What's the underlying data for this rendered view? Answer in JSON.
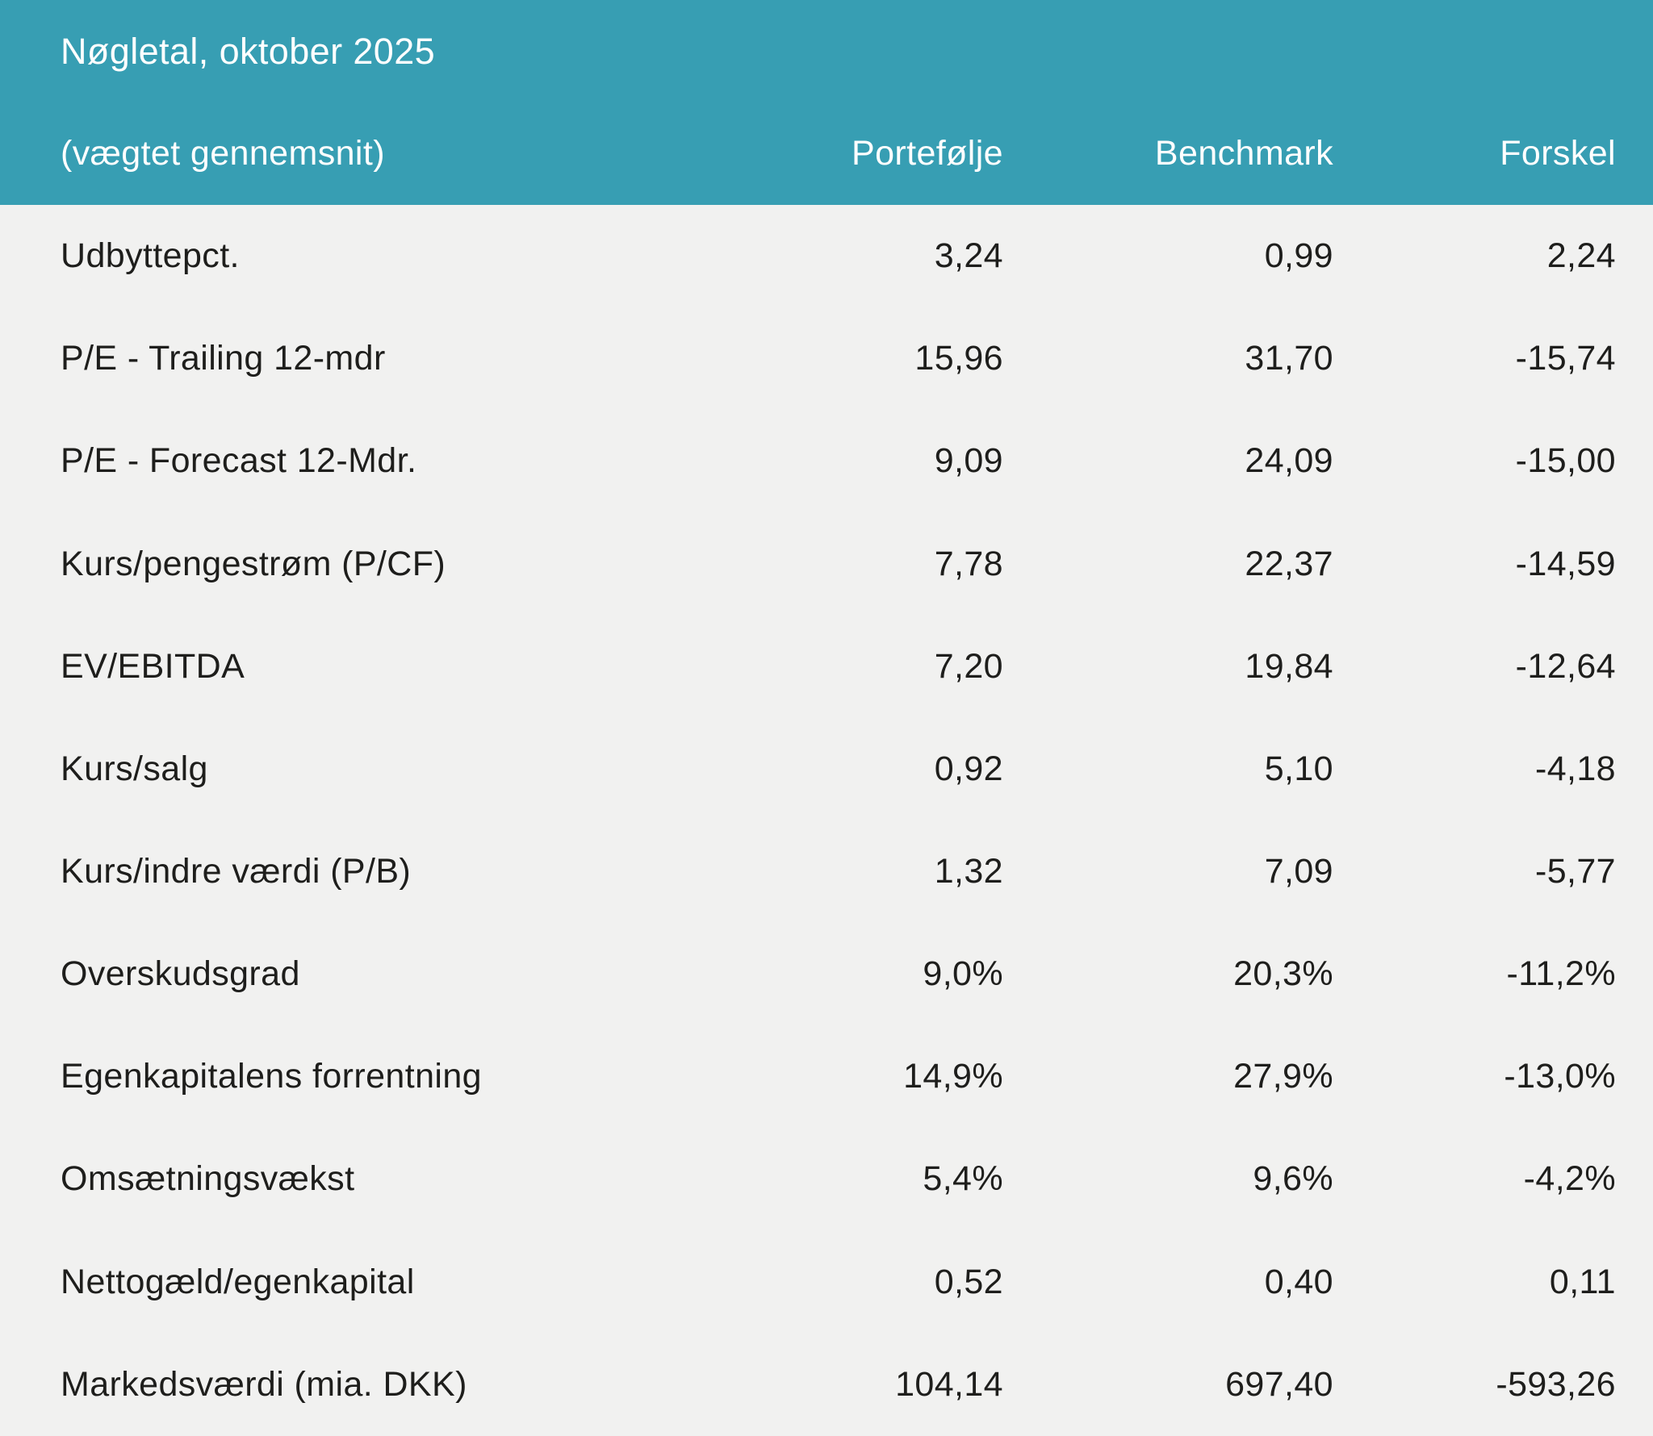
{
  "header": {
    "title": "Nøgletal, oktober 2025",
    "subtitle": "(vægtet gennemsnit)",
    "columns": {
      "portfolio": "Portefølje",
      "benchmark": "Benchmark",
      "difference": "Forskel"
    }
  },
  "colors": {
    "header_bg": "#379EB3",
    "header_text": "#FFFFFF",
    "body_bg": "#F1F1F0",
    "body_text": "#1E1E1C"
  },
  "table": {
    "rows": [
      {
        "label": "Udbyttepct.",
        "portfolio": "3,24",
        "benchmark": "0,99",
        "difference": "2,24"
      },
      {
        "label": "P/E - Trailing 12-mdr",
        "portfolio": "15,96",
        "benchmark": "31,70",
        "difference": "-15,74"
      },
      {
        "label": "P/E - Forecast 12-Mdr.",
        "portfolio": "9,09",
        "benchmark": "24,09",
        "difference": "-15,00"
      },
      {
        "label": "Kurs/pengestrøm (P/CF)",
        "portfolio": "7,78",
        "benchmark": "22,37",
        "difference": "-14,59"
      },
      {
        "label": "EV/EBITDA",
        "portfolio": "7,20",
        "benchmark": "19,84",
        "difference": "-12,64"
      },
      {
        "label": "Kurs/salg",
        "portfolio": "0,92",
        "benchmark": "5,10",
        "difference": "-4,18"
      },
      {
        "label": "Kurs/indre værdi (P/B)",
        "portfolio": "1,32",
        "benchmark": "7,09",
        "difference": "-5,77"
      },
      {
        "label": "Overskudsgrad",
        "portfolio": "9,0%",
        "benchmark": "20,3%",
        "difference": "-11,2%"
      },
      {
        "label": "Egenkapitalens forrentning",
        "portfolio": "14,9%",
        "benchmark": "27,9%",
        "difference": "-13,0%"
      },
      {
        "label": "Omsætningsvækst",
        "portfolio": "5,4%",
        "benchmark": "9,6%",
        "difference": "-4,2%"
      },
      {
        "label": "Nettogæld/egenkapital",
        "portfolio": "0,52",
        "benchmark": "0,40",
        "difference": "0,11"
      },
      {
        "label": "Markedsværdi (mia. DKK)",
        "portfolio": "104,14",
        "benchmark": "697,40",
        "difference": "-593,26"
      }
    ]
  }
}
